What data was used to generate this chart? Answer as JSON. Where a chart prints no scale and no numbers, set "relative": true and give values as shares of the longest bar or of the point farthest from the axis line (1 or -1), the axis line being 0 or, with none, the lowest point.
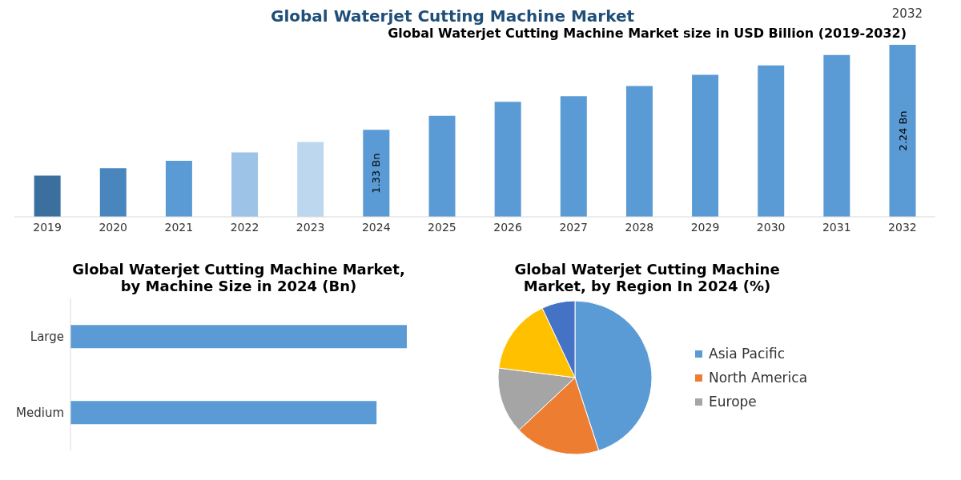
{
  "chart_data": [
    {
      "type": "bar",
      "title": "Global Waterjet Cutting Machine Market size in USD Billion (2019-2032)",
      "annotations": [
        "Global Waterjet Cutting Machine Market",
        "2032"
      ],
      "ylim": [
        0.4,
        2.24
      ],
      "tick_labels": "x",
      "categories": [
        "2019",
        "2020",
        "2021",
        "2022",
        "2023",
        "2024",
        "2025",
        "2026",
        "2027",
        "2028",
        "2029",
        "2030",
        "2031",
        "2032"
      ],
      "values": [
        0.84,
        0.92,
        1.0,
        1.09,
        1.2,
        1.33,
        1.48,
        1.63,
        1.69,
        1.8,
        1.92,
        2.02,
        2.13,
        2.24
      ],
      "colors": [
        "#3a6f9e",
        "#4a86be",
        "#5b9bd5",
        "#9dc3e6",
        "#bdd7ee",
        "#5b9bd5",
        "#5b9bd5",
        "#5b9bd5",
        "#5b9bd5",
        "#5b9bd5",
        "#5b9bd5",
        "#5b9bd5",
        "#5b9bd5",
        "#5b9bd5"
      ],
      "value_labels": [
        null,
        null,
        null,
        null,
        null,
        "1.33 Bn",
        null,
        null,
        null,
        null,
        null,
        null,
        null,
        "2.24 Bn"
      ]
    },
    {
      "type": "bar",
      "orientation": "horizontal",
      "title": "Global Waterjet Cutting Machine Market, by Machine Size in 2024 (Bn)",
      "relative": true,
      "categories": [
        "Large",
        "Medium"
      ],
      "values": [
        1,
        0.91
      ],
      "color": "#5b9bd5"
    },
    {
      "type": "pie",
      "title": "Global Waterjet Cutting Machine Market, by Region In 2024 (%)",
      "legend": "right",
      "categories": [
        "Asia Pacific",
        "North America",
        "Europe",
        null,
        null
      ],
      "values": [
        45,
        18,
        14,
        16,
        7
      ],
      "colors": [
        "#5b9bd5",
        "#ed7d31",
        "#a5a5a5",
        "#ffc000",
        "#4472c4"
      ]
    }
  ]
}
